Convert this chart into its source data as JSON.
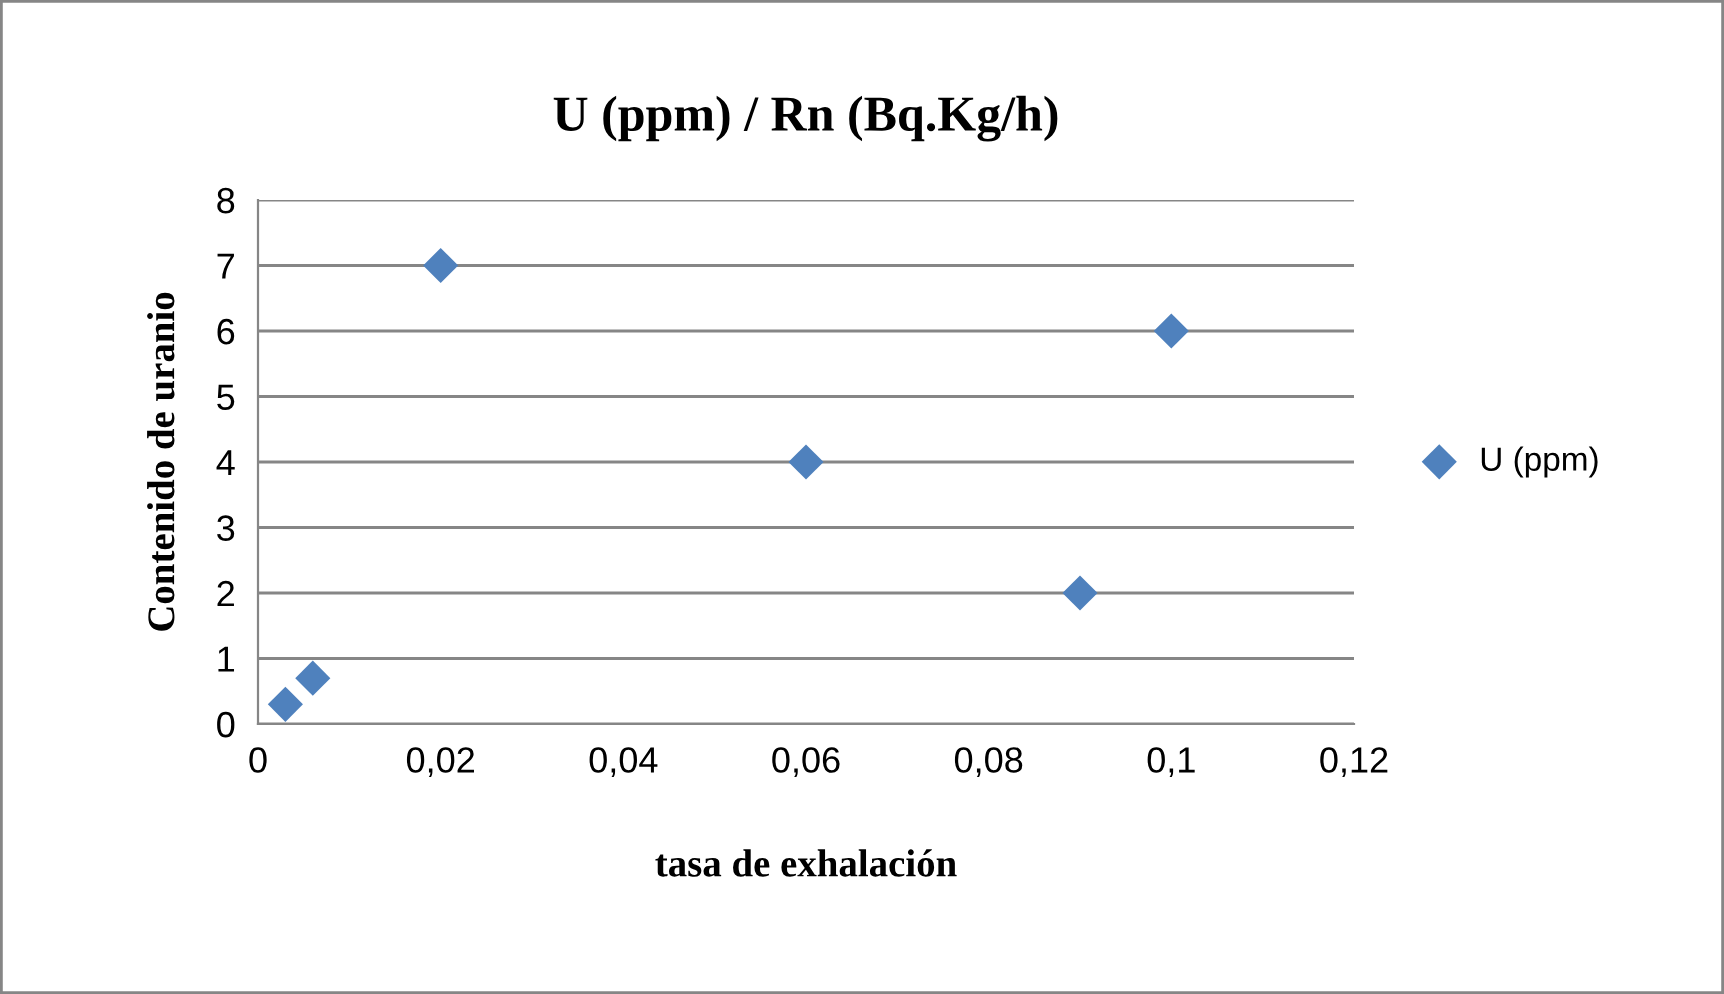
{
  "chart_data": {
    "type": "scatter",
    "title": "U (ppm) / Rn (Bq.Kg/h)",
    "xlabel": "tasa de exhalación",
    "ylabel": "Contenido de uranio",
    "series": [
      {
        "name": "U (ppm)",
        "color": "#4f81bd",
        "x": [
          0.003,
          0.006,
          0.02,
          0.06,
          0.09,
          0.1
        ],
        "values": [
          0.3,
          0.7,
          7,
          4,
          2,
          6
        ]
      }
    ],
    "xlim": [
      0,
      0.12
    ],
    "xticks": [
      0,
      {
        "value": 0.02,
        "label": "0,02"
      },
      {
        "value": 0.04,
        "label": "0,04"
      },
      {
        "value": 0.06,
        "label": "0,06"
      },
      {
        "value": 0.08,
        "label": "0,08"
      },
      {
        "value": 0.1,
        "label": "0,1"
      },
      {
        "value": 0.12,
        "label": "0,12"
      }
    ],
    "ylim": [
      0,
      8
    ],
    "yticks": [
      0,
      1,
      2,
      3,
      4,
      5,
      6,
      7,
      8
    ],
    "grid": "y",
    "legend": "right",
    "marker": "diamond"
  }
}
